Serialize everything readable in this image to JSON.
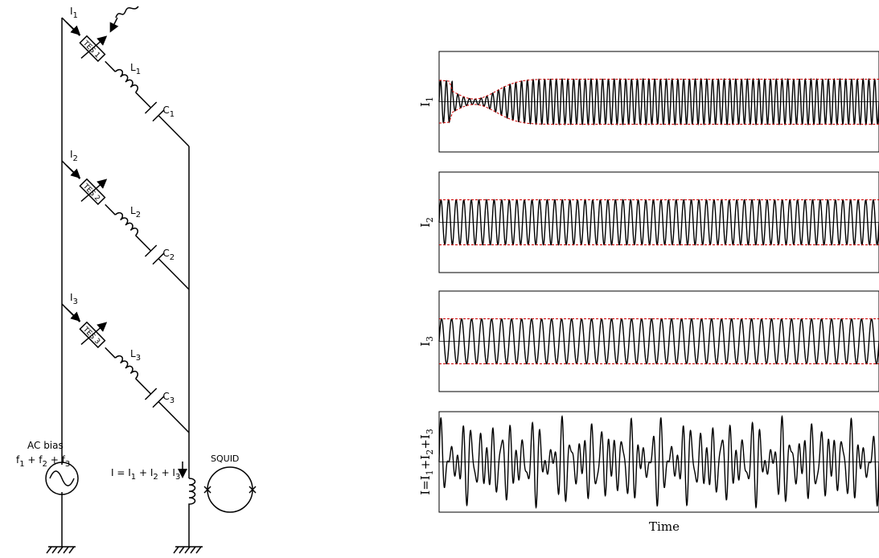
{
  "circuit": {
    "branches": [
      {
        "current": "I",
        "current_sub": "1",
        "tes": "TES 1",
        "inductor": "L",
        "inductor_sub": "1",
        "capacitor": "C",
        "capacitor_sub": "1"
      },
      {
        "current": "I",
        "current_sub": "2",
        "tes": "TES 2",
        "inductor": "L",
        "inductor_sub": "2",
        "capacitor": "C",
        "capacitor_sub": "2"
      },
      {
        "current": "I",
        "current_sub": "3",
        "tes": "TES 3",
        "inductor": "L",
        "inductor_sub": "3",
        "capacitor": "C",
        "capacitor_sub": "3"
      }
    ],
    "ac_bias_label": "AC bias",
    "ac_bias_freq": [
      "f",
      "1",
      " + f",
      "2",
      " + f",
      "3"
    ],
    "sum_current": [
      "I = I",
      "1",
      " + I",
      "2",
      " + I",
      "3"
    ],
    "squid_label": "SQUID"
  },
  "plots": {
    "x_label": "Time",
    "panels": [
      {
        "ylabel": "I",
        "ylabel_sub": "1",
        "kind": "modulated",
        "cycles": 76,
        "envelope_color": "#cc0000"
      },
      {
        "ylabel": "I",
        "ylabel_sub": "2",
        "kind": "constant",
        "cycles": 58,
        "envelope_color": "#cc0000"
      },
      {
        "ylabel": "I",
        "ylabel_sub": "3",
        "kind": "constant",
        "cycles": 44,
        "envelope_color": "#cc0000"
      },
      {
        "ylabel": "I=I",
        "ylabel_parts": [
          "I=I",
          "1",
          "+I",
          "2",
          "+I",
          "3"
        ],
        "kind": "sum"
      }
    ]
  }
}
